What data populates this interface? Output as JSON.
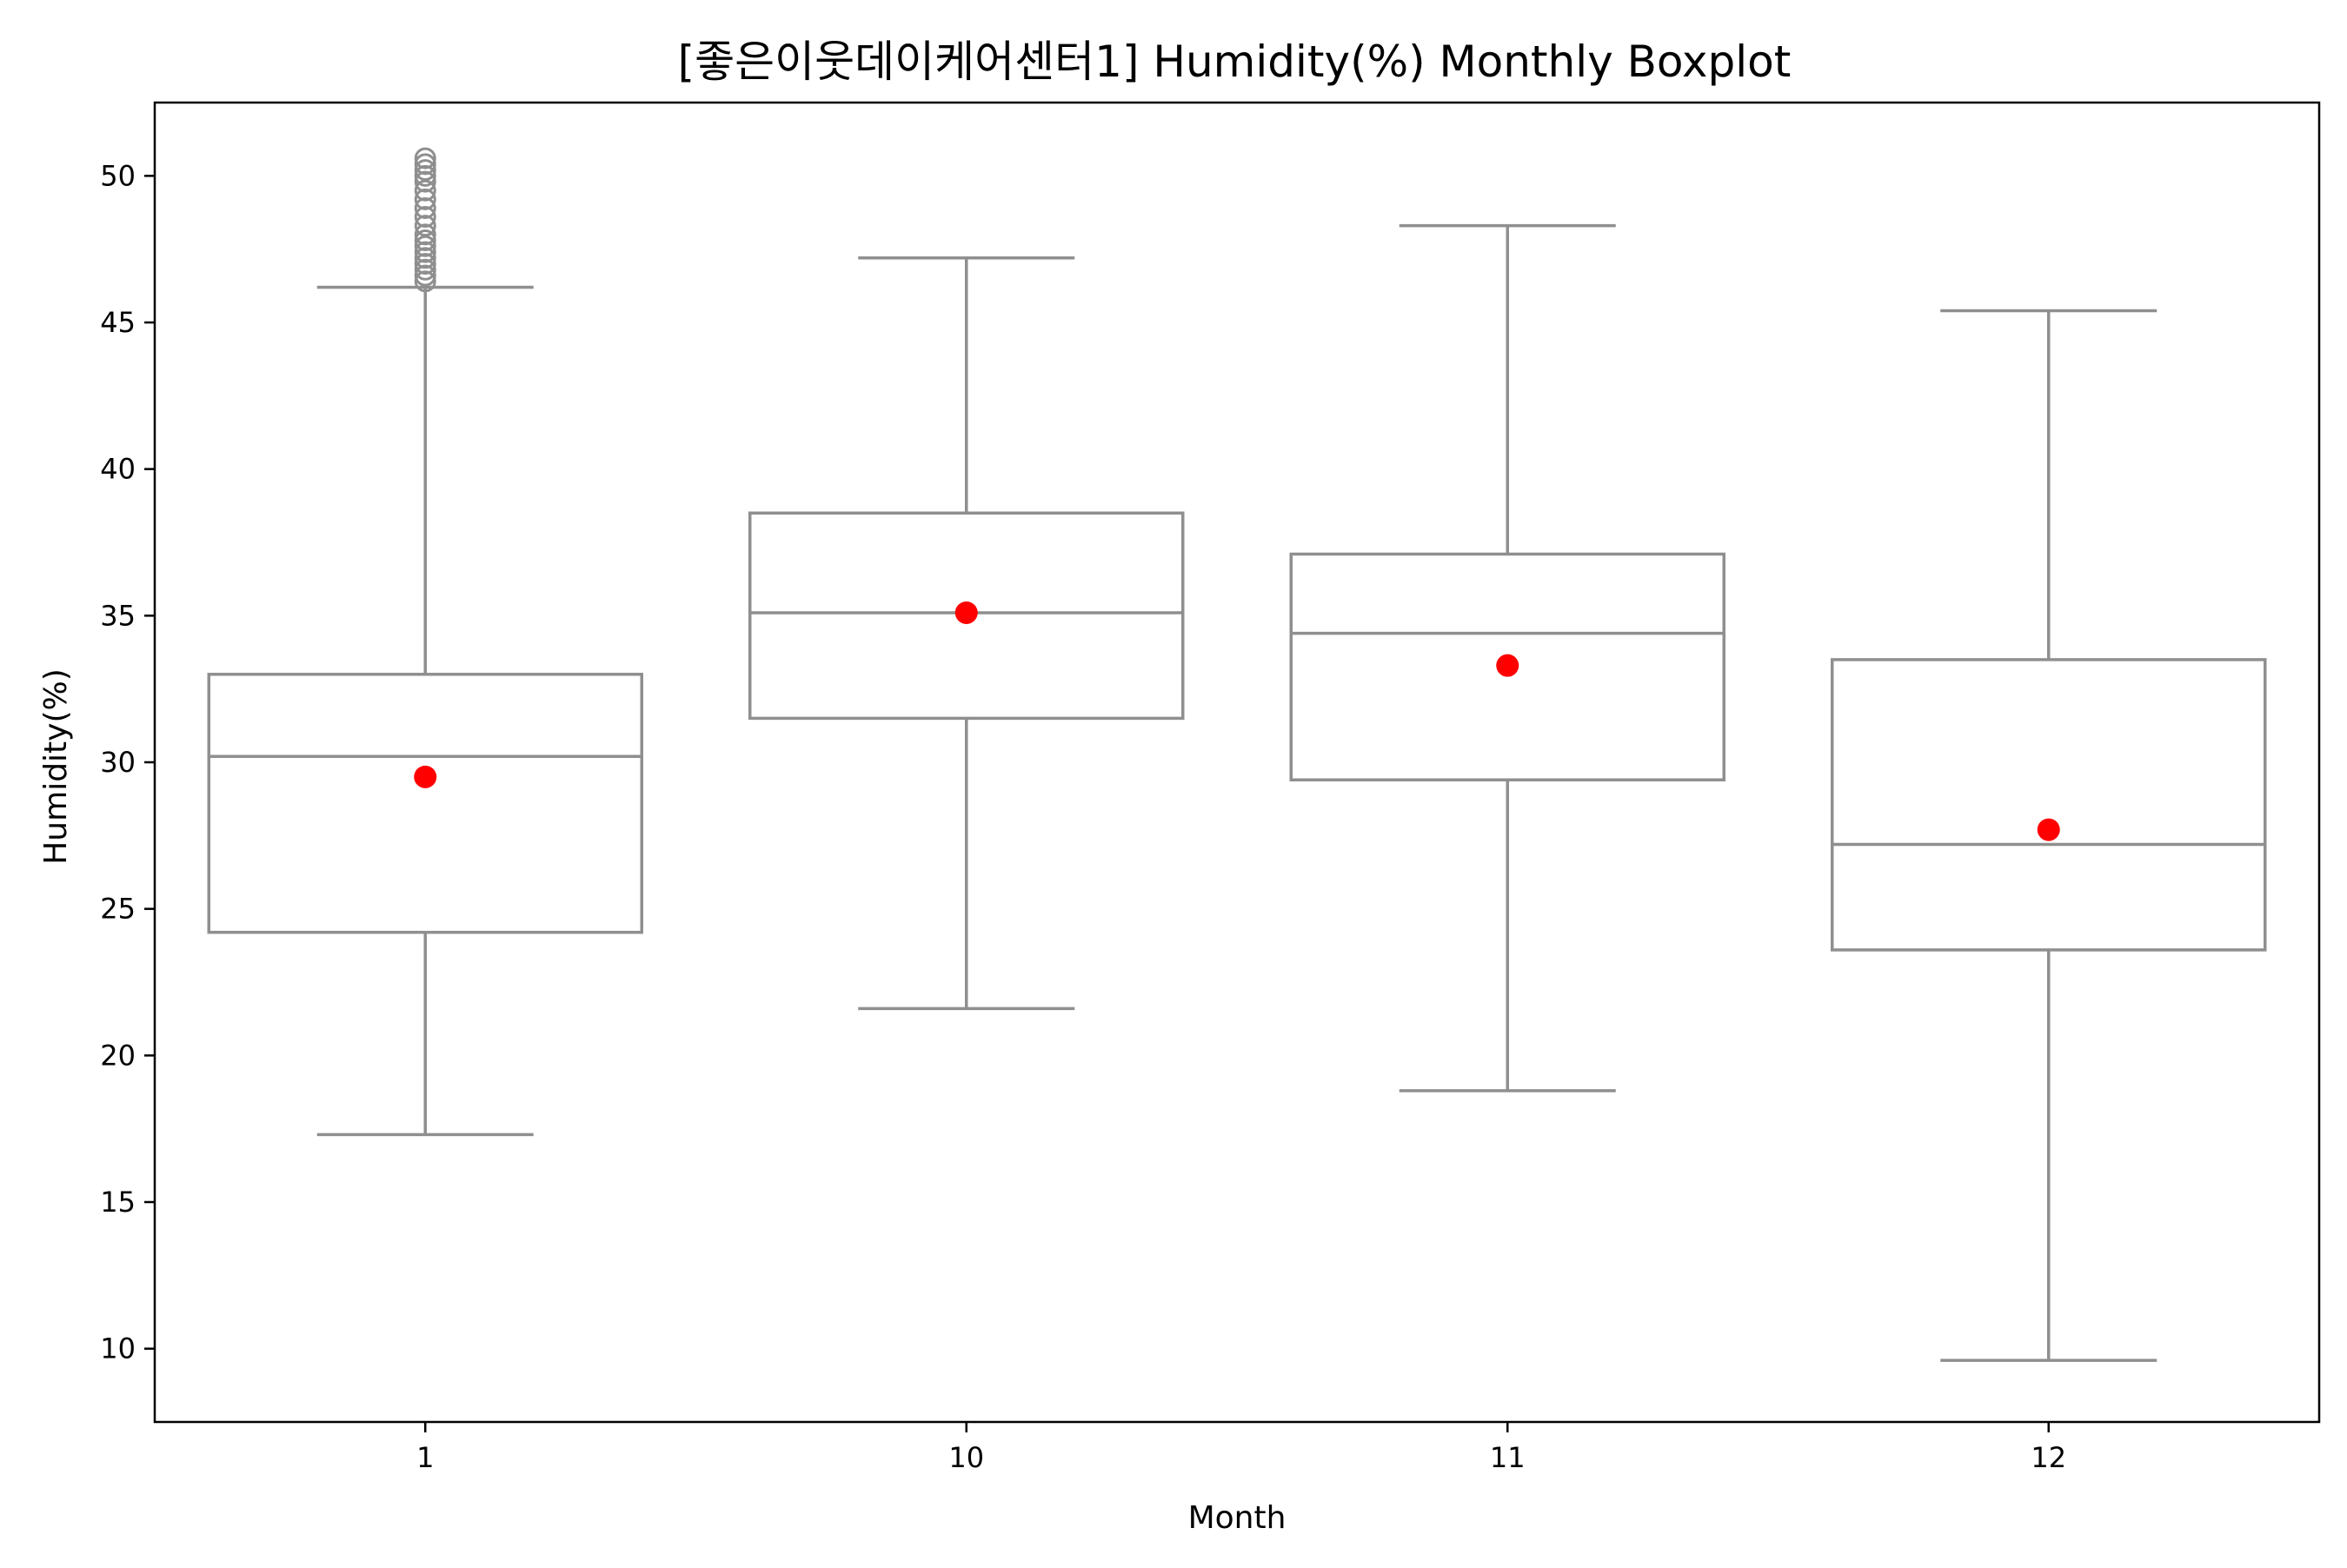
{
  "chart_data": {
    "type": "boxplot",
    "title": "[좋은이웃데이케어센터1] Humidity(%) Monthly Boxplot",
    "xlabel": "Month",
    "ylabel": "Humidity(%)",
    "categories": [
      "1",
      "10",
      "11",
      "12"
    ],
    "ylim": [
      7.5,
      52.5
    ],
    "yticks": [
      10,
      15,
      20,
      25,
      30,
      35,
      40,
      45,
      50
    ],
    "grid": false,
    "legend": "none",
    "colors": {
      "box": "#8f8f8f",
      "mean": "#ff0000",
      "axis": "#000000",
      "outlier": "#8f8f8f"
    },
    "boxes": [
      {
        "category": "1",
        "whisker_low": 17.3,
        "q1": 24.2,
        "median": 30.2,
        "q3": 33.0,
        "whisker_high": 46.2,
        "mean": 29.5,
        "outliers": [
          46.4,
          46.6,
          46.8,
          47.0,
          47.2,
          47.4,
          47.6,
          47.8,
          48.0,
          48.3,
          48.6,
          48.9,
          49.2,
          49.5,
          49.8,
          50.0,
          50.2,
          50.4,
          50.6
        ]
      },
      {
        "category": "10",
        "whisker_low": 21.6,
        "q1": 31.5,
        "median": 35.1,
        "q3": 38.5,
        "whisker_high": 47.2,
        "mean": 35.1,
        "outliers": []
      },
      {
        "category": "11",
        "whisker_low": 18.8,
        "q1": 29.4,
        "median": 34.4,
        "q3": 37.1,
        "whisker_high": 48.3,
        "mean": 33.3,
        "outliers": []
      },
      {
        "category": "12",
        "whisker_low": 9.6,
        "q1": 23.6,
        "median": 27.2,
        "q3": 33.5,
        "whisker_high": 45.4,
        "mean": 27.7,
        "outliers": []
      }
    ]
  }
}
